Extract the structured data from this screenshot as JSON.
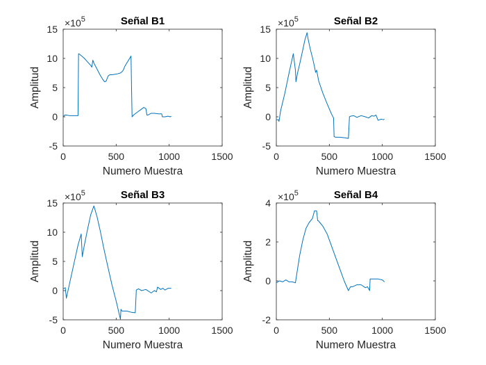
{
  "chart_data": [
    {
      "type": "line",
      "title": "Señal B1",
      "xlabel": "Numero Muestra",
      "ylabel": "Amplitud",
      "xlim": [
        0,
        1500
      ],
      "ylim": [
        -5,
        15
      ],
      "xticks": [
        0,
        500,
        1000,
        1500
      ],
      "yticks": [
        -5,
        0,
        5,
        10,
        15
      ],
      "exponent": "×10^5",
      "exponent_base": "×10",
      "exponent_power": "5",
      "grid": false,
      "color": "#0072BD",
      "series": [
        {
          "x": [
            0,
            15,
            30,
            60,
            90,
            120,
            130,
            140,
            145,
            155,
            175,
            200,
            230,
            260,
            270,
            280,
            290,
            310,
            330,
            350,
            370,
            390,
            405,
            420,
            425,
            440,
            460,
            500,
            540,
            560,
            570,
            580,
            600,
            620,
            640,
            645,
            650,
            670,
            700,
            730,
            760,
            780,
            790,
            800,
            830,
            860,
            900,
            930,
            935,
            960,
            990,
            1010,
            1020
          ],
          "y": [
            0,
            0.3,
            0.3,
            0.2,
            0.2,
            0.2,
            0.2,
            0.2,
            10.8,
            10.7,
            10.4,
            10.0,
            9.4,
            8.8,
            8.5,
            9.7,
            9.2,
            8.5,
            7.8,
            7.1,
            6.5,
            6.0,
            6.1,
            6.8,
            7.0,
            7.2,
            7.2,
            7.3,
            7.5,
            7.8,
            8.1,
            8.6,
            9.2,
            9.8,
            10.4,
            5.0,
            0.0,
            0.4,
            0.8,
            1.2,
            1.6,
            1.4,
            0.3,
            0.3,
            0.6,
            0.6,
            0.5,
            0.5,
            0.0,
            0.0,
            0.1,
            0.0,
            0.1
          ]
        }
      ]
    },
    {
      "type": "line",
      "title": "Señal B2",
      "xlabel": "Numero Muestra",
      "ylabel": "Amplitud",
      "xlim": [
        0,
        1500
      ],
      "ylim": [
        -5,
        15
      ],
      "xticks": [
        0,
        500,
        1000,
        1500
      ],
      "yticks": [
        -5,
        0,
        5,
        10,
        15
      ],
      "exponent": "×10^5",
      "exponent_base": "×10",
      "exponent_power": "5",
      "grid": false,
      "color": "#0072BD",
      "series": [
        {
          "x": [
            0,
            20,
            25,
            40,
            80,
            120,
            160,
            180,
            185,
            200,
            220,
            250,
            270,
            290,
            300,
            320,
            340,
            360,
            370,
            380,
            400,
            440,
            480,
            520,
            540,
            545,
            560,
            600,
            650,
            680,
            690,
            700,
            730,
            760,
            800,
            840,
            870,
            900,
            920,
            940,
            960,
            990,
            1010,
            1020
          ],
          "y": [
            -0.5,
            -0.5,
            -0.8,
            1.0,
            4.0,
            7.5,
            10.8,
            8.0,
            6.0,
            7.5,
            9.0,
            11.5,
            13.2,
            14.4,
            13.3,
            11.6,
            10.2,
            8.6,
            7.6,
            8.0,
            6.1,
            4.0,
            2.2,
            0.5,
            -0.2,
            -3.4,
            -3.5,
            -3.5,
            -3.6,
            -3.7,
            0.0,
            0.1,
            0.2,
            -0.1,
            0.2,
            0.0,
            -0.2,
            0.2,
            0.1,
            0.3,
            -0.6,
            -0.4,
            -0.5,
            -0.4
          ]
        }
      ]
    },
    {
      "type": "line",
      "title": "Señal B3",
      "xlabel": "Numero Muestra",
      "ylabel": "Amplitud",
      "xlim": [
        0,
        1500
      ],
      "ylim": [
        -5,
        15
      ],
      "xticks": [
        0,
        500,
        1000,
        1500
      ],
      "yticks": [
        -5,
        0,
        5,
        10,
        15
      ],
      "exponent": "×10^5",
      "exponent_base": "×10",
      "exponent_power": "5",
      "grid": false,
      "color": "#0072BD",
      "series": [
        {
          "x": [
            0,
            20,
            30,
            60,
            100,
            140,
            170,
            180,
            200,
            230,
            260,
            290,
            320,
            350,
            380,
            420,
            460,
            500,
            540,
            545,
            555,
            580,
            600,
            640,
            680,
            690,
            710,
            740,
            780,
            830,
            860,
            880,
            890,
            920,
            940,
            960,
            990,
            1010,
            1020
          ],
          "y": [
            0.3,
            0.5,
            -1.3,
            1.2,
            4.5,
            7.8,
            9.7,
            5.8,
            7.8,
            10.5,
            13.0,
            14.5,
            12.6,
            10.2,
            7.5,
            4.2,
            1.0,
            -1.8,
            -4.9,
            -3.2,
            -3.5,
            -3.5,
            -3.5,
            -3.7,
            -3.8,
            0.1,
            0.3,
            0.0,
            0.2,
            -0.4,
            0.0,
            -0.2,
            0.6,
            0.2,
            0.4,
            0.1,
            0.4,
            0.4,
            0.4
          ]
        }
      ]
    },
    {
      "type": "line",
      "title": "Señal B4",
      "xlabel": "Numero Muestra",
      "ylabel": "Amplitud",
      "xlim": [
        0,
        1500
      ],
      "ylim": [
        -2,
        4
      ],
      "xticks": [
        0,
        500,
        1000,
        1500
      ],
      "yticks": [
        -2,
        0,
        2,
        4
      ],
      "exponent": "×10^5",
      "exponent_base": "×10",
      "exponent_power": "5",
      "grid": false,
      "color": "#0072BD",
      "series": [
        {
          "x": [
            0,
            30,
            60,
            90,
            120,
            150,
            180,
            200,
            220,
            250,
            280,
            310,
            340,
            360,
            365,
            380,
            390,
            395,
            410,
            440,
            480,
            520,
            560,
            600,
            640,
            680,
            700,
            720,
            760,
            800,
            840,
            860,
            880,
            885,
            900,
            920,
            960,
            1000,
            1020
          ],
          "y": [
            -0.1,
            0.0,
            -0.05,
            0.05,
            -0.05,
            -0.05,
            -0.1,
            0.6,
            1.3,
            2.1,
            2.7,
            3.0,
            3.2,
            3.6,
            3.6,
            3.6,
            3.1,
            3.1,
            3.0,
            2.8,
            2.4,
            1.8,
            1.2,
            0.6,
            0.0,
            -0.5,
            -0.3,
            -0.3,
            -0.2,
            -0.2,
            -0.35,
            -0.3,
            -0.5,
            0.1,
            0.1,
            0.1,
            0.1,
            0.05,
            -0.05
          ]
        }
      ]
    }
  ]
}
